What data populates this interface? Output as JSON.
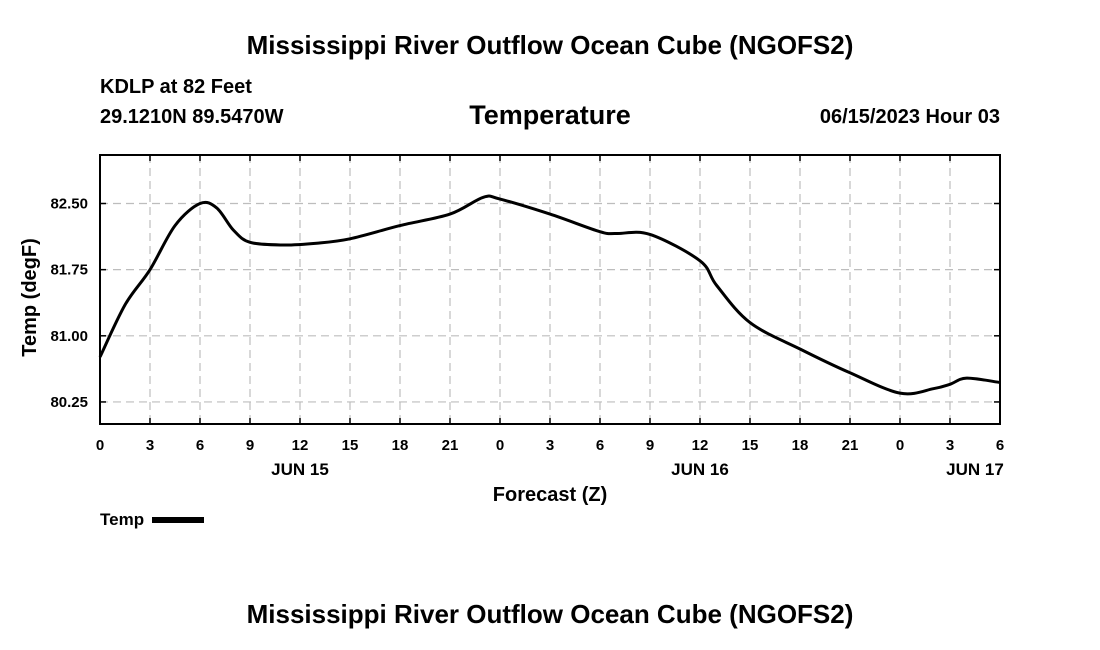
{
  "page": {
    "title": "Mississippi River Outflow Ocean Cube (NGOFS2)",
    "footer_title": "Mississippi River Outflow Ocean Cube (NGOFS2)",
    "station": "KDLP at 82 Feet",
    "coordinates": "29.1210N  89.5470W",
    "subtitle": "Temperature",
    "datetime": "06/15/2023 Hour 03"
  },
  "chart_data": {
    "type": "line",
    "title": "Temperature",
    "xlabel": "Forecast (Z)",
    "ylabel": "Temp (degF)",
    "x_unit": "hours since 06/15/2023 00Z",
    "xlim": [
      0,
      54
    ],
    "ylim": [
      80.0,
      83.05
    ],
    "x_tick_values": [
      0,
      3,
      6,
      9,
      12,
      15,
      18,
      21,
      24,
      27,
      30,
      33,
      36,
      39,
      42,
      45,
      48,
      51,
      54
    ],
    "x_tick_labels": [
      "0",
      "3",
      "6",
      "9",
      "12",
      "15",
      "18",
      "21",
      "0",
      "3",
      "6",
      "9",
      "12",
      "15",
      "18",
      "21",
      "0",
      "3",
      "6"
    ],
    "date_labels": [
      {
        "x": 12,
        "label": "JUN 15"
      },
      {
        "x": 36,
        "label": "JUN 16"
      },
      {
        "x": 52.5,
        "label": "JUN 17"
      }
    ],
    "y_ticks": [
      80.25,
      81.0,
      81.75,
      82.5
    ],
    "y_tick_labels": [
      "80.25",
      "81.00",
      "81.75",
      "82.50"
    ],
    "grid": true,
    "legend": {
      "position": "bottom-left",
      "entries": [
        "Temp"
      ]
    },
    "series": [
      {
        "name": "Temp",
        "color": "#000000",
        "x": [
          0,
          1.5,
          3,
          4.5,
          6,
          7,
          8,
          9,
          11,
          13,
          15,
          18,
          21,
          23,
          24,
          27,
          30,
          31,
          33,
          36,
          37,
          39,
          42,
          45,
          48,
          50,
          51,
          52,
          54
        ],
        "y": [
          80.76,
          81.35,
          81.75,
          82.25,
          82.5,
          82.45,
          82.2,
          82.06,
          82.03,
          82.05,
          82.1,
          82.25,
          82.38,
          82.57,
          82.55,
          82.38,
          82.18,
          82.16,
          82.15,
          81.85,
          81.57,
          81.15,
          80.85,
          80.58,
          80.35,
          80.4,
          80.45,
          80.52,
          80.47
        ]
      }
    ]
  }
}
